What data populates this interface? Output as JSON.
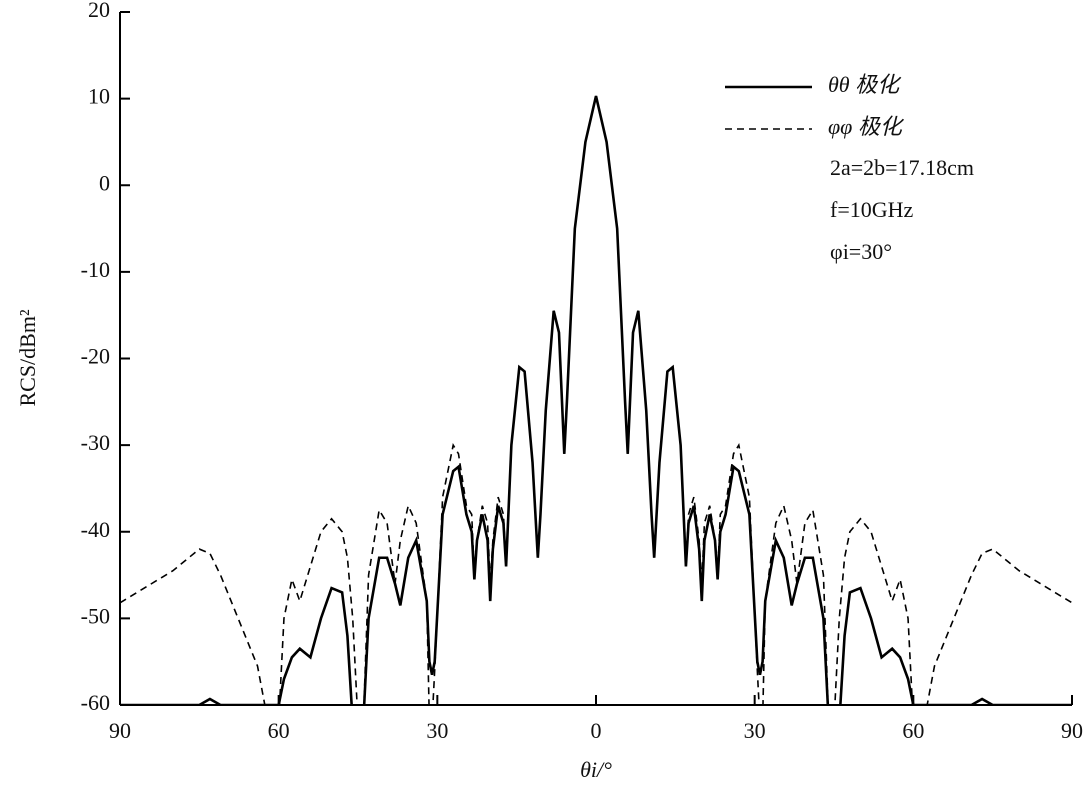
{
  "chart_data": {
    "type": "line",
    "x_label": "θi/°",
    "y_label": "RCS/dBm²",
    "annotations": [
      "2a=2b=17.18cm",
      "f=10GHz",
      "φi=30°"
    ],
    "legend": "upper right",
    "xlim": [
      -90,
      90
    ],
    "ylim": [
      -60,
      20
    ],
    "xticks": [
      {
        "value": -90,
        "label": "90"
      },
      {
        "value": -60,
        "label": "60"
      },
      {
        "value": -30,
        "label": "30"
      },
      0,
      {
        "value": 30,
        "label": "30"
      },
      {
        "value": 60,
        "label": "60"
      },
      {
        "value": 90,
        "label": "90"
      }
    ],
    "yticks": [
      -60,
      -50,
      -40,
      -30,
      -20,
      -10,
      0,
      10,
      20
    ],
    "x": [
      -90,
      -80,
      -75,
      -73,
      -71,
      -64,
      -62,
      -60,
      -59,
      -57.5,
      -56,
      -54,
      -52,
      -50,
      -48,
      -47,
      -46,
      -45,
      -44,
      -43,
      -41,
      -39.5,
      -38,
      -37,
      -35.5,
      -34,
      -32,
      -31.5,
      -31,
      -30.5,
      -29,
      -27,
      -26,
      -24.5,
      -23.5,
      -23,
      -22.5,
      -21.5,
      -20.5,
      -20,
      -19.5,
      -18.5,
      -17.5,
      -17,
      -16,
      -14.5,
      -13.5,
      -12,
      -11,
      -10.5,
      -9.5,
      -8,
      -7,
      -6,
      -5.5,
      -4,
      -2,
      0,
      2,
      4,
      5.5,
      6,
      7,
      8,
      9.5,
      10.5,
      11,
      12,
      13.5,
      14.5,
      16,
      17,
      17.5,
      18.5,
      19.5,
      20,
      20.5,
      21.5,
      22.5,
      23,
      23.5,
      24.5,
      26,
      27,
      29,
      30.5,
      31,
      31.5,
      32,
      34,
      35.5,
      37,
      38,
      39.5,
      41,
      43,
      44,
      45,
      46,
      47,
      48,
      50,
      52,
      54,
      56,
      57.5,
      59,
      60,
      62,
      64,
      71,
      73,
      75,
      80,
      90
    ],
    "series": [
      {
        "name": "θθ 极化",
        "color": "#000000",
        "dash": false,
        "values": [
          -60,
          -60,
          -60,
          -59.3,
          -60,
          -60,
          -60,
          -60,
          -57,
          -54.5,
          -53.5,
          -54.5,
          -50,
          -46.5,
          -47,
          -52,
          -62,
          -62,
          -62,
          -50,
          -43,
          -43,
          -46,
          -48.5,
          -43,
          -41,
          -48,
          -55,
          -56.5,
          -55,
          -38,
          -33,
          -32.5,
          -38,
          -40,
          -45.5,
          -41,
          -38,
          -41,
          -48,
          -42,
          -37,
          -39,
          -44,
          -30,
          -21,
          -21.5,
          -32,
          -43,
          -38,
          -26,
          -14.5,
          -17,
          -31,
          -25,
          -5,
          5,
          10.3,
          5,
          -5,
          -25,
          -31,
          -17,
          -14.5,
          -26,
          -38,
          -43,
          -32,
          -21.5,
          -21,
          -30,
          -44,
          -39,
          -37,
          -42,
          -48,
          -41,
          -38,
          -41,
          -45.5,
          -40,
          -38,
          -32.5,
          -33,
          -38,
          -55,
          -56.5,
          -55,
          -48,
          -41,
          -43,
          -48.5,
          -46,
          -43,
          -43,
          -50,
          -62,
          -62,
          -62,
          -52,
          -47,
          -46.5,
          -50,
          -54.5,
          -53.5,
          -54.5,
          -57,
          -60,
          -60,
          -60,
          -60,
          -59.3,
          -60,
          -60,
          -60
        ]
      },
      {
        "name": "φφ 极化",
        "color": "#000000",
        "dash": true,
        "values": [
          -48.2,
          -44.5,
          -42,
          -42.5,
          -45,
          -55.5,
          -62,
          -62,
          -50,
          -45.5,
          -48,
          -44,
          -40,
          -38.5,
          -40,
          -43,
          -50,
          -62,
          -62,
          -45,
          -37.5,
          -39,
          -46,
          -41,
          -37,
          -39,
          -48,
          -62,
          -62,
          -56,
          -36,
          -30,
          -31,
          -37,
          -38,
          -45,
          -41,
          -37,
          -39,
          -46,
          -41,
          -36,
          -38,
          -44,
          -30,
          -21,
          -21.5,
          -32,
          -43,
          -38,
          -26,
          -14.5,
          -17,
          -31,
          -25,
          -5,
          5,
          10.3,
          5,
          -5,
          -25,
          -31,
          -17,
          -14.5,
          -26,
          -38,
          -43,
          -32,
          -21.5,
          -21,
          -30,
          -44,
          -38,
          -36,
          -41,
          -46,
          -39,
          -37,
          -41,
          -45,
          -38,
          -37,
          -31,
          -30,
          -36,
          -56,
          -62,
          -62,
          -48,
          -39,
          -37,
          -41,
          -46,
          -39,
          -37.5,
          -45,
          -62,
          -62,
          -50,
          -43,
          -40,
          -38.5,
          -40,
          -44,
          -48,
          -45.5,
          -50,
          -62,
          -62,
          -55.5,
          -45,
          -42.5,
          -42,
          -44.5,
          -48.2
        ]
      }
    ]
  }
}
